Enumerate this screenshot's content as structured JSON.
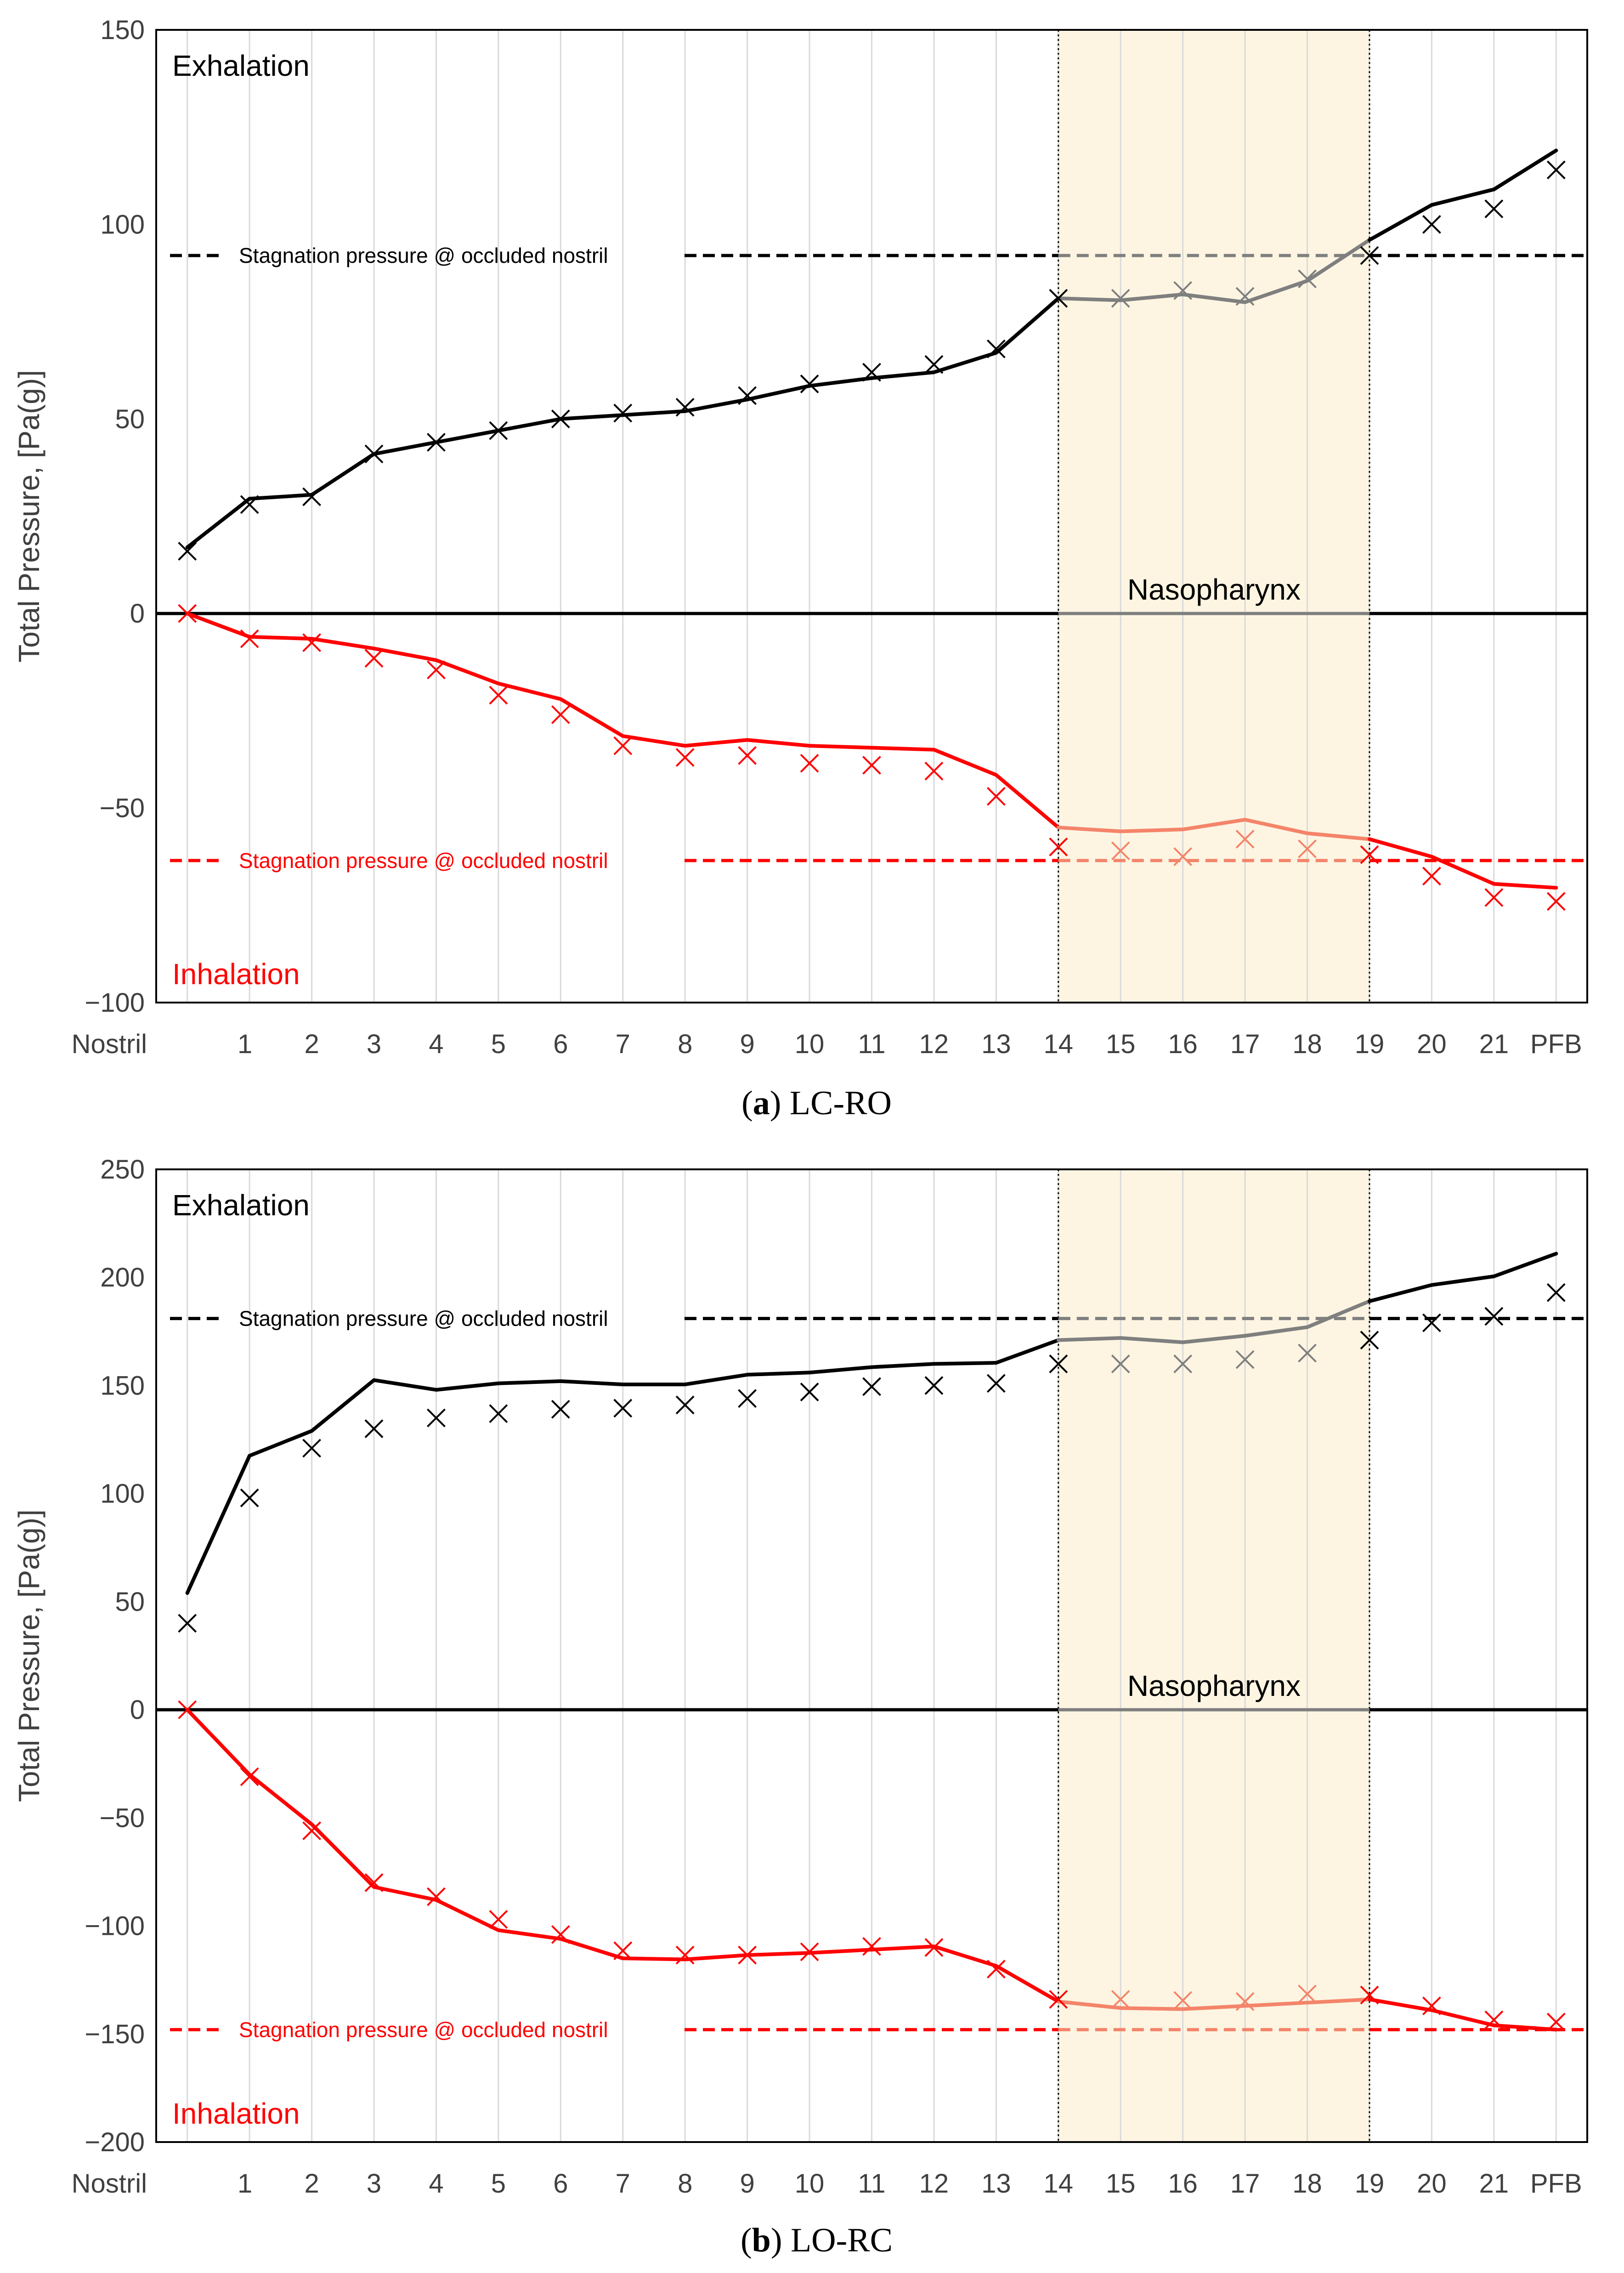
{
  "colors": {
    "exhalation": "#000000",
    "exhalation_in_region": "#7f7f7f",
    "inhalation": "#ff0000",
    "inhalation_in_region": "#f4846a",
    "region_fill": "#fdf5e2",
    "grid": "#d9d9d9",
    "axis_text": "#404040"
  },
  "chart_data": [
    {
      "type": "line",
      "panel": "a",
      "caption_letter": "a",
      "caption_text": ") LC-RO",
      "caption_open": "(",
      "categories": [
        "Nostril",
        "1",
        "2",
        "3",
        "4",
        "5",
        "6",
        "7",
        "8",
        "9",
        "10",
        "11",
        "12",
        "13",
        "14",
        "15",
        "16",
        "17",
        "18",
        "19",
        "20",
        "21",
        "PFB"
      ],
      "ylabel": "Total Pressure, [Pa(g)]",
      "ylim": [
        -100,
        150
      ],
      "yticks": [
        150,
        100,
        50,
        0,
        -50,
        -100
      ],
      "ytick_labels": [
        "150",
        "100",
        "50",
        "0",
        "−50",
        "−100"
      ],
      "grid": "vertical",
      "region": {
        "from": "14",
        "to": "19",
        "label": "Nasopharynx",
        "label_y": 0
      },
      "annotations": {
        "top": "Exhalation",
        "bottom": "Inhalation"
      },
      "series": [
        {
          "name": "Exhalation (line)",
          "kind": "line",
          "color": "exhalation",
          "values": [
            17,
            29.5,
            30.5,
            41,
            44,
            47,
            50,
            51,
            52,
            55,
            58.5,
            60.5,
            62,
            67,
            81,
            80.5,
            82,
            80,
            85.5,
            96,
            105,
            109,
            119
          ]
        },
        {
          "name": "Exhalation (markers)",
          "kind": "marker",
          "color": "exhalation",
          "values": [
            16,
            28,
            30,
            41,
            44,
            47,
            50,
            51.5,
            53,
            56,
            59,
            62,
            64,
            68,
            81,
            81,
            83,
            81.5,
            86,
            92,
            100,
            104,
            114
          ]
        },
        {
          "name": "Inhalation (line)",
          "kind": "line",
          "color": "inhalation",
          "values": [
            0,
            -6,
            -6.5,
            -9,
            -12,
            -18,
            -22,
            -31.5,
            -34,
            -32.5,
            -34,
            -34.5,
            -35,
            -41.5,
            -55,
            -56,
            -55.5,
            -53,
            -56.5,
            -58,
            -62.5,
            -69.5,
            -70.5
          ]
        },
        {
          "name": "Inhalation (markers)",
          "kind": "marker",
          "color": "inhalation",
          "values": [
            0,
            -6.5,
            -7.5,
            -11.5,
            -14.5,
            -21,
            -26,
            -34,
            -37,
            -36.5,
            -38.5,
            -39,
            -40.5,
            -47,
            -60,
            -61,
            -62.5,
            -58,
            -60.5,
            -62,
            -67.5,
            -73,
            -74
          ]
        }
      ],
      "reference_lines": [
        {
          "label": "Stagnation pressure @ occluded nostril",
          "value": 92,
          "color": "exhalation"
        },
        {
          "label": "Stagnation pressure @ occluded nostril",
          "value": -63.5,
          "color": "inhalation"
        }
      ]
    },
    {
      "type": "line",
      "panel": "b",
      "caption_letter": "b",
      "caption_text": ") LO-RC",
      "caption_open": "(",
      "categories": [
        "Nostril",
        "1",
        "2",
        "3",
        "4",
        "5",
        "6",
        "7",
        "8",
        "9",
        "10",
        "11",
        "12",
        "13",
        "14",
        "15",
        "16",
        "17",
        "18",
        "19",
        "20",
        "21",
        "PFB"
      ],
      "ylabel": "Total Pressure, [Pa(g)]",
      "ylim": [
        -200,
        250
      ],
      "yticks": [
        250,
        200,
        150,
        100,
        50,
        0,
        -50,
        -100,
        -150,
        -200
      ],
      "ytick_labels": [
        "250",
        "200",
        "150",
        "100",
        "50",
        "0",
        "−50",
        "−100",
        "−150",
        "−200"
      ],
      "grid": "vertical",
      "region": {
        "from": "14",
        "to": "19",
        "label": "Nasopharynx",
        "label_y": 0
      },
      "annotations": {
        "top": "Exhalation",
        "bottom": "Inhalation"
      },
      "series": [
        {
          "name": "Exhalation (line)",
          "kind": "line",
          "color": "exhalation",
          "values": [
            54,
            117.5,
            129,
            152.5,
            148,
            151,
            152,
            150.5,
            150.5,
            155,
            156,
            158.5,
            160,
            160.5,
            171,
            172,
            170,
            173,
            177,
            189,
            196.5,
            200.5,
            211
          ]
        },
        {
          "name": "Exhalation (markers)",
          "kind": "marker",
          "color": "exhalation",
          "values": [
            40,
            98,
            121,
            130,
            135,
            137,
            139,
            139.5,
            141,
            144,
            147,
            149.5,
            150,
            151,
            160,
            160,
            160,
            162,
            165,
            171,
            179,
            182,
            193
          ]
        },
        {
          "name": "Inhalation (line)",
          "kind": "line",
          "color": "inhalation",
          "values": [
            0,
            -30,
            -53,
            -82,
            -88,
            -102,
            -106,
            -115,
            -115.5,
            -113.5,
            -112.5,
            -111,
            -109.5,
            -118.5,
            -135,
            -138,
            -138.5,
            -137,
            -135.5,
            -134,
            -139,
            -146,
            -148
          ]
        },
        {
          "name": "Inhalation (markers)",
          "kind": "marker",
          "color": "inhalation",
          "values": [
            0,
            -31,
            -56,
            -80,
            -86.5,
            -97,
            -104,
            -111.5,
            -113.5,
            -113.5,
            -112,
            -109.5,
            -110,
            -120,
            -134,
            -134,
            -134.5,
            -135,
            -131.5,
            -132,
            -137,
            -143.5,
            -144.5
          ]
        }
      ],
      "reference_lines": [
        {
          "label": "Stagnation pressure @ occluded nostril",
          "value": 181,
          "color": "exhalation"
        },
        {
          "label": "Stagnation pressure @ occluded nostril",
          "value": -148,
          "color": "inhalation"
        }
      ]
    }
  ]
}
